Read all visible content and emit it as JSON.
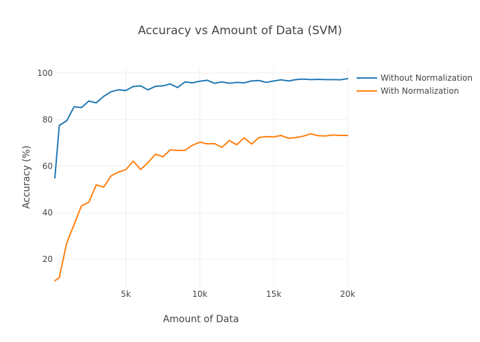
{
  "chart_data": {
    "type": "line",
    "title": "Accuracy vs Amount of Data (SVM)",
    "xlabel": "Amount of Data",
    "ylabel": "Accuracy (%)",
    "xlim": [
      200,
      20000
    ],
    "ylim": [
      8,
      102
    ],
    "grid": true,
    "legend_position": "top-right",
    "x_ticks": [
      {
        "value": 5000,
        "label": "5k"
      },
      {
        "value": 10000,
        "label": "10k"
      },
      {
        "value": 15000,
        "label": "15k"
      },
      {
        "value": 20000,
        "label": "20k"
      }
    ],
    "y_ticks": [
      {
        "value": 20,
        "label": "20"
      },
      {
        "value": 40,
        "label": "40"
      },
      {
        "value": 60,
        "label": "60"
      },
      {
        "value": 80,
        "label": "80"
      },
      {
        "value": 100,
        "label": "100"
      }
    ],
    "x": [
      200,
      500,
      1000,
      1500,
      2000,
      2500,
      3000,
      3500,
      4000,
      4500,
      5000,
      5500,
      6000,
      6500,
      7000,
      7500,
      8000,
      8500,
      9000,
      9500,
      10000,
      10500,
      11000,
      11500,
      12000,
      12500,
      13000,
      13500,
      14000,
      14500,
      15000,
      15500,
      16000,
      16500,
      17000,
      17500,
      18000,
      18500,
      19000,
      19500,
      20000
    ],
    "series": [
      {
        "name": "Without Normalization",
        "color": "#1f77b4",
        "values": [
          55.0,
          77.5,
          79.5,
          85.5,
          85.2,
          88.0,
          87.2,
          90.0,
          92.0,
          92.8,
          92.5,
          94.2,
          94.5,
          92.8,
          94.3,
          94.5,
          95.3,
          93.8,
          96.2,
          95.8,
          96.5,
          96.9,
          95.6,
          96.2,
          95.6,
          96.0,
          95.8,
          96.6,
          96.8,
          96.0,
          96.6,
          97.1,
          96.6,
          97.2,
          97.4,
          97.2,
          97.3,
          97.2,
          97.2,
          97.1,
          97.6
        ]
      },
      {
        "name": "With Normalization",
        "color": "#ff7f0e",
        "values": [
          10.8,
          12.2,
          27.0,
          35.0,
          43.0,
          44.5,
          52.0,
          51.0,
          55.8,
          57.5,
          58.5,
          62.2,
          58.6,
          61.5,
          65.2,
          64.0,
          67.0,
          66.8,
          66.8,
          69.0,
          70.3,
          69.6,
          69.7,
          68.1,
          71.0,
          69.2,
          72.2,
          69.5,
          72.3,
          72.7,
          72.6,
          73.2,
          72.0,
          72.3,
          72.9,
          73.9,
          73.1,
          73.0,
          73.4,
          73.2,
          73.2
        ]
      }
    ]
  }
}
